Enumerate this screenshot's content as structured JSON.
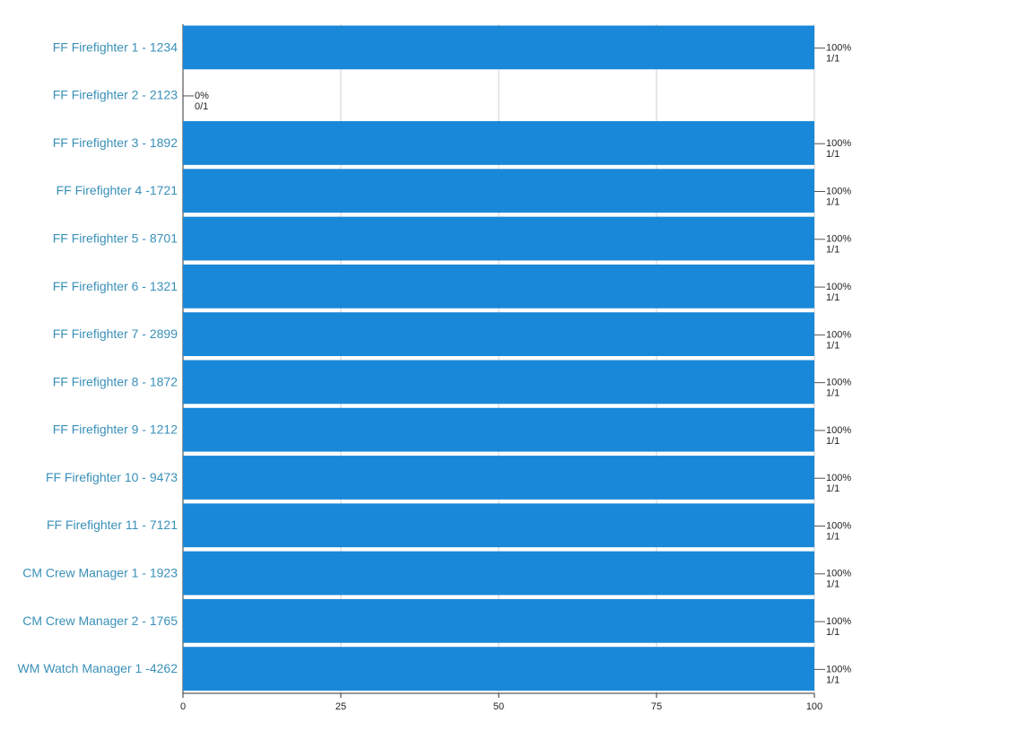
{
  "chart_data": {
    "type": "bar",
    "orientation": "horizontal",
    "categories": [
      "FF Firefighter 1 - 1234",
      "FF Firefighter 2 - 2123",
      "FF Firefighter 3 - 1892",
      "FF Firefighter 4 -1721",
      "FF Firefighter 5 - 8701",
      "FF Firefighter 6 - 1321",
      "FF Firefighter 7 - 2899",
      "FF Firefighter 8 - 1872",
      "FF Firefighter 9 - 1212",
      "FF Firefighter 10 - 9473",
      "FF Firefighter 11 - 7121",
      "CM Crew Manager 1 - 1923",
      "CM Crew Manager 2 - 1765",
      "WM Watch Manager 1 -4262"
    ],
    "values": [
      100,
      0,
      100,
      100,
      100,
      100,
      100,
      100,
      100,
      100,
      100,
      100,
      100,
      100
    ],
    "value_labels": [
      "100%",
      "0%",
      "100%",
      "100%",
      "100%",
      "100%",
      "100%",
      "100%",
      "100%",
      "100%",
      "100%",
      "100%",
      "100%",
      "100%"
    ],
    "count_labels": [
      "1/1",
      "0/1",
      "1/1",
      "1/1",
      "1/1",
      "1/1",
      "1/1",
      "1/1",
      "1/1",
      "1/1",
      "1/1",
      "1/1",
      "1/1",
      "1/1"
    ],
    "color": "#1a88d8",
    "xlim": [
      0,
      100
    ],
    "xticks": [
      0,
      25,
      50,
      75,
      100
    ],
    "grid": true
  }
}
